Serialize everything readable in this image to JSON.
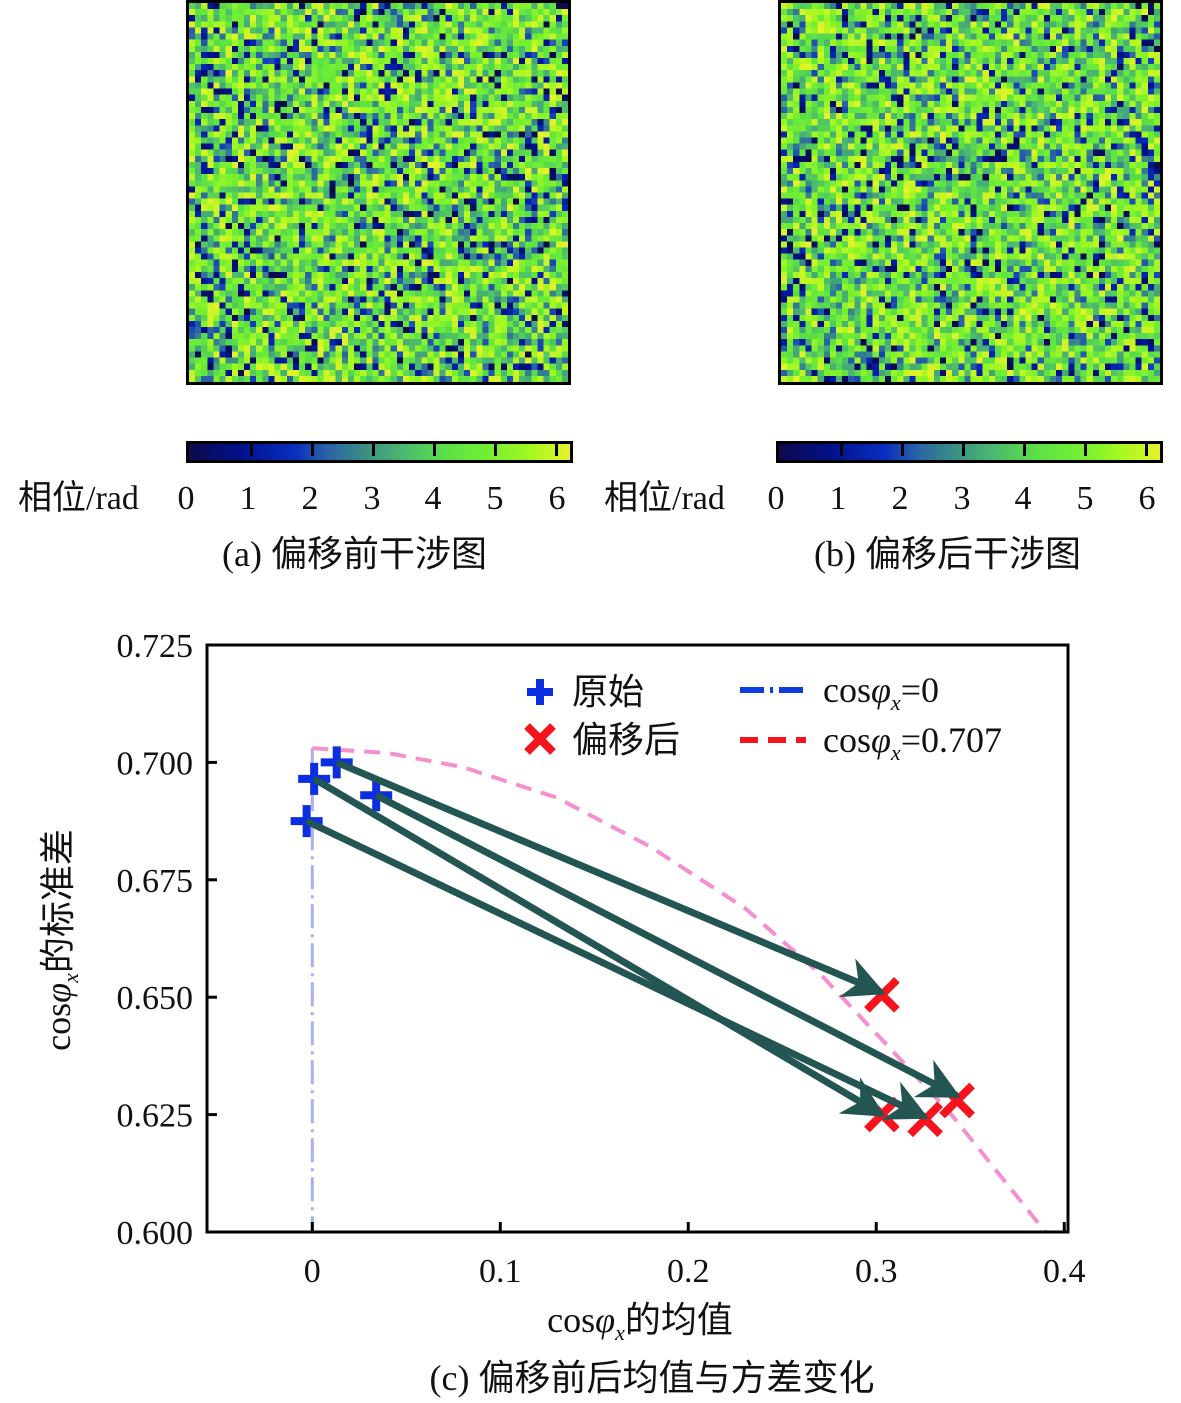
{
  "panels": [
    {
      "id": "a",
      "caption": "(a) 偏移前干涉图",
      "colorbar_label": "相位/rad",
      "colorbar_ticks": [
        "0",
        "1",
        "2",
        "3",
        "4",
        "5",
        "6"
      ],
      "seed": 11
    },
    {
      "id": "b",
      "caption": "(b) 偏移后干涉图",
      "colorbar_label": "相位/rad",
      "colorbar_ticks": [
        "0",
        "1",
        "2",
        "3",
        "4",
        "5",
        "6"
      ],
      "seed": 29
    }
  ],
  "colormap": {
    "name": "viridis-like",
    "range": [
      0,
      6.28
    ],
    "stops": [
      "#0d0a4a",
      "#00118e",
      "#0a2fc0",
      "#2a62a6",
      "#3a8e86",
      "#4ab870",
      "#5ce244",
      "#76f030",
      "#a8f821",
      "#e6f22a"
    ]
  },
  "chart_data": {
    "type": "scatter",
    "caption": "(c) 偏移前后均值与方差变化",
    "xlabel": "cosφx的均值",
    "xlabel_parts": {
      "pre": "cos",
      "phi": "φ",
      "sub": "x",
      "post": "的均值"
    },
    "ylabel": "cosφx的标准差",
    "ylabel_parts": {
      "pre": "cos",
      "phi": "φ",
      "sub": "x",
      "post": "的标准差"
    },
    "xlim": [
      -0.056,
      0.402
    ],
    "ylim": [
      0.6,
      0.725
    ],
    "xticks": [
      0,
      0.1,
      0.2,
      0.3,
      0.4
    ],
    "xtick_labels": [
      "0",
      "0.1",
      "0.2",
      "0.3",
      "0.4"
    ],
    "yticks": [
      0.6,
      0.625,
      0.65,
      0.675,
      0.7,
      0.725
    ],
    "ytick_labels": [
      "0.600",
      "0.625",
      "0.650",
      "0.675",
      "0.700",
      "0.725"
    ],
    "grid": false,
    "legend_position": "top-right",
    "legend": [
      {
        "label": "原始",
        "marker": "plus",
        "color": "#0a2ee0"
      },
      {
        "label": "偏移后",
        "marker": "x",
        "color": "#f5141e"
      },
      {
        "label_pre": "cos",
        "label_phi": "φ",
        "label_sub": "x",
        "label_post": "=0",
        "line": "dashdot",
        "color": "#0a3ee0"
      },
      {
        "label_pre": "cos",
        "label_phi": "φ",
        "label_sub": "x",
        "label_post": "=0.707",
        "line": "dashed",
        "color": "#f5141e"
      }
    ],
    "series": [
      {
        "name": "原始",
        "marker": "plus",
        "color": "#0a2ee0",
        "points": [
          {
            "x": -0.003,
            "y": 0.6875
          },
          {
            "x": 0.001,
            "y": 0.6965
          },
          {
            "x": 0.013,
            "y": 0.7
          },
          {
            "x": 0.034,
            "y": 0.693
          }
        ]
      },
      {
        "name": "偏移后",
        "marker": "x",
        "color": "#f5141e",
        "points": [
          {
            "x": 0.303,
            "y": 0.6505
          },
          {
            "x": 0.303,
            "y": 0.625
          },
          {
            "x": 0.326,
            "y": 0.624
          },
          {
            "x": 0.343,
            "y": 0.628
          }
        ]
      }
    ],
    "arrows": [
      {
        "from": {
          "x": 0.013,
          "y": 0.7
        },
        "to": {
          "x": 0.303,
          "y": 0.651
        }
      },
      {
        "from": {
          "x": 0.001,
          "y": 0.6965
        },
        "to": {
          "x": 0.303,
          "y": 0.625
        }
      },
      {
        "from": {
          "x": 0.034,
          "y": 0.693
        },
        "to": {
          "x": 0.343,
          "y": 0.629
        }
      },
      {
        "from": {
          "x": -0.003,
          "y": 0.6875
        },
        "to": {
          "x": 0.326,
          "y": 0.6245
        }
      }
    ],
    "arrow_color": "#235652",
    "reference_lines": [
      {
        "name": "cosφx=0",
        "style": "dashdot",
        "color": "#a8b0f0",
        "points": [
          {
            "x": 0,
            "y": 0.703
          },
          {
            "x": 0,
            "y": 0.6
          }
        ]
      },
      {
        "name": "cosφx=0.707",
        "style": "dashed",
        "color": "#f58fcf",
        "points": [
          {
            "x": 0,
            "y": 0.703
          },
          {
            "x": 0.04,
            "y": 0.702
          },
          {
            "x": 0.08,
            "y": 0.699
          },
          {
            "x": 0.13,
            "y": 0.6925
          },
          {
            "x": 0.18,
            "y": 0.682
          },
          {
            "x": 0.23,
            "y": 0.669
          },
          {
            "x": 0.27,
            "y": 0.655
          },
          {
            "x": 0.31,
            "y": 0.638
          },
          {
            "x": 0.34,
            "y": 0.625
          },
          {
            "x": 0.37,
            "y": 0.61
          },
          {
            "x": 0.39,
            "y": 0.6
          }
        ]
      }
    ]
  }
}
